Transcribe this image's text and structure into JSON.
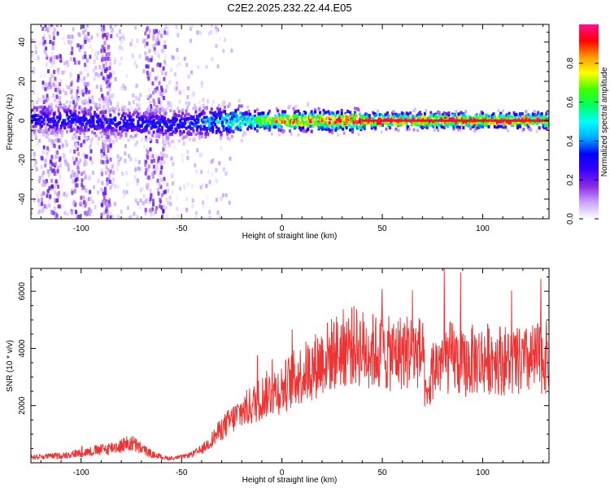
{
  "title": "C2E2.2025.232.22.44.E05",
  "chart_data": [
    {
      "type": "heatmap",
      "xlabel": "Height of straight line (km)",
      "ylabel": "Frequency (Hz)",
      "xlim": [
        -125,
        133
      ],
      "ylim": [
        -50,
        49
      ],
      "x_ticks": [
        -100,
        -50,
        0,
        50,
        100
      ],
      "y_ticks": [
        -40,
        -20,
        0,
        20,
        40
      ],
      "colorbar": {
        "label": "Normalized spectral amplitude",
        "range": [
          0,
          1
        ],
        "ticks": [
          "0.0",
          "0.2",
          "0.4",
          "0.6",
          "0.8"
        ],
        "colors": [
          "#ffffff",
          "#c9a6ff",
          "#8a2be2",
          "#3a00ff",
          "#0000ff",
          "#00aaff",
          "#00ffff",
          "#00ff60",
          "#40ff00",
          "#ffff00",
          "#ff9900",
          "#ff0000",
          "#ff1090"
        ]
      },
      "ridge": {
        "x_range": [
          -125,
          133
        ],
        "center_freq": [
          {
            "x": -125,
            "y": 1
          },
          {
            "x": -100,
            "y": 0
          },
          {
            "x": -80,
            "y": -1
          },
          {
            "x": -55,
            "y": -2
          },
          {
            "x": -40,
            "y": -1
          },
          {
            "x": -20,
            "y": 0
          },
          {
            "x": 133,
            "y": 0
          }
        ],
        "peak_amplitude": [
          {
            "x": -125,
            "y": 0.3
          },
          {
            "x": -50,
            "y": 0.32
          },
          {
            "x": -20,
            "y": 0.55
          },
          {
            "x": 0,
            "y": 0.8
          },
          {
            "x": 40,
            "y": 0.95
          },
          {
            "x": 133,
            "y": 0.95
          }
        ]
      }
    },
    {
      "type": "line",
      "xlabel": "Height of straight line (km)",
      "ylabel": "SNR (10 * v/v)",
      "xlim": [
        -125,
        133
      ],
      "ylim": [
        0,
        6800
      ],
      "x_ticks": [
        -100,
        -50,
        0,
        50,
        100
      ],
      "y_ticks": [
        2000,
        4000,
        6000
      ],
      "color": "#ee3333",
      "series": [
        {
          "x": [
            -125,
            -110,
            -100,
            -90,
            -80,
            -75,
            -70,
            -65,
            -60,
            -55,
            -50,
            -45,
            -40,
            -35,
            -30,
            -25,
            -20,
            -15,
            -10,
            -5,
            0,
            5,
            10,
            15,
            20,
            25,
            30,
            35,
            40,
            45,
            50,
            55,
            60,
            65,
            70,
            72,
            75,
            80,
            85,
            90,
            95,
            100,
            105,
            110,
            115,
            120,
            125,
            133
          ],
          "y": [
            200,
            250,
            350,
            450,
            600,
            700,
            500,
            300,
            200,
            150,
            200,
            300,
            450,
            800,
            1200,
            1500,
            1800,
            2000,
            2300,
            2500,
            2600,
            2900,
            3100,
            3300,
            3600,
            3800,
            4000,
            4100,
            4000,
            3900,
            3800,
            3800,
            3900,
            3900,
            3800,
            2000,
            3300,
            3600,
            3700,
            3400,
            3600,
            3600,
            3700,
            3600,
            3500,
            3500,
            3600,
            3700
          ]
        }
      ]
    }
  ]
}
